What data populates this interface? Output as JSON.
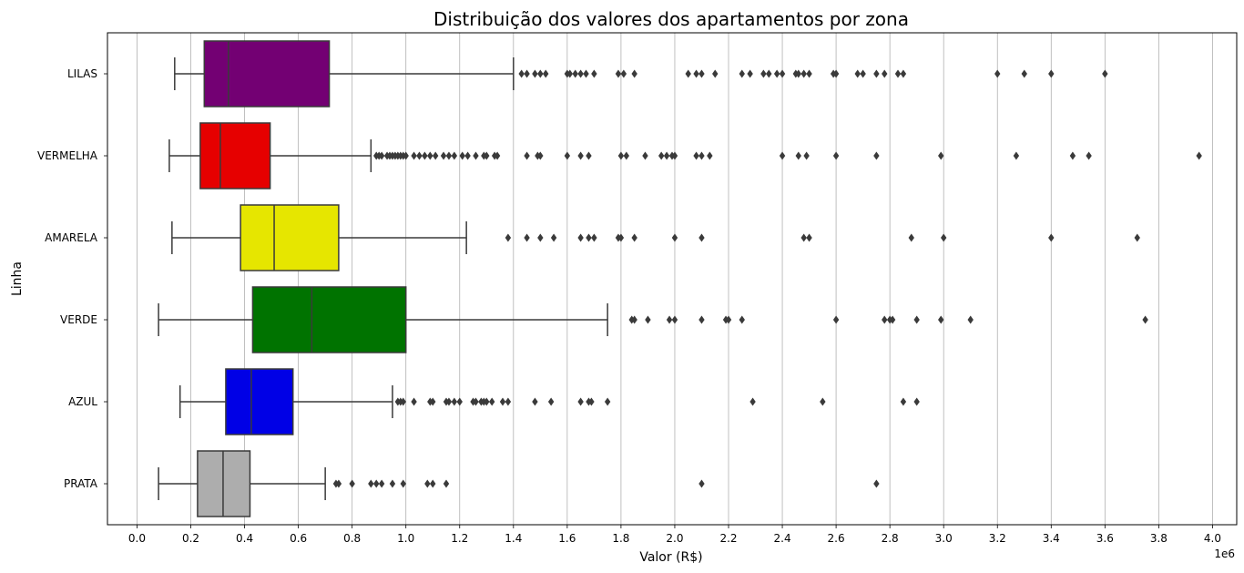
{
  "chart_data": {
    "type": "boxplot",
    "orientation": "horizontal",
    "title": "Distribuição dos valores dos apartamentos por zona",
    "xlabel": "Valor (R$)",
    "ylabel": "Linha",
    "x_offset_label": "1e6",
    "xlim": [
      -0.11,
      4.09
    ],
    "xticks": [
      "0.0",
      "0.2",
      "0.4",
      "0.6",
      "0.8",
      "1.0",
      "1.2",
      "1.4",
      "1.6",
      "1.8",
      "2.0",
      "2.2",
      "2.4",
      "2.6",
      "2.8",
      "3.0",
      "3.2",
      "3.4",
      "3.6",
      "3.8",
      "4.0"
    ],
    "grid": "vertical",
    "categories": [
      "LILAS",
      "VERMELHA",
      "AMARELA",
      "VERDE",
      "AZUL",
      "PRATA"
    ],
    "series": [
      {
        "category": "LILAS",
        "color": "#800080",
        "whisker_low": 0.14,
        "q1": 0.25,
        "median": 0.34,
        "q3": 0.715,
        "whisker_high": 1.4,
        "outliers": [
          1.43,
          1.45,
          1.48,
          1.5,
          1.52,
          1.6,
          1.61,
          1.63,
          1.65,
          1.67,
          1.7,
          1.79,
          1.81,
          1.85,
          2.05,
          2.08,
          2.1,
          2.15,
          2.25,
          2.28,
          2.33,
          2.35,
          2.38,
          2.4,
          2.45,
          2.46,
          2.48,
          2.5,
          2.59,
          2.6,
          2.68,
          2.7,
          2.75,
          2.78,
          2.83,
          2.85,
          3.2,
          3.3,
          3.4,
          3.6
        ]
      },
      {
        "category": "VERMELHA",
        "color": "#ff0000",
        "whisker_low": 0.12,
        "q1": 0.235,
        "median": 0.31,
        "q3": 0.495,
        "whisker_high": 0.87,
        "outliers": [
          0.89,
          0.9,
          0.91,
          0.93,
          0.94,
          0.95,
          0.96,
          0.97,
          0.98,
          0.99,
          1.0,
          1.03,
          1.05,
          1.07,
          1.09,
          1.11,
          1.14,
          1.16,
          1.18,
          1.21,
          1.23,
          1.26,
          1.29,
          1.3,
          1.33,
          1.34,
          1.45,
          1.49,
          1.5,
          1.6,
          1.65,
          1.68,
          1.8,
          1.82,
          1.89,
          1.95,
          1.97,
          1.99,
          2.0,
          2.08,
          2.1,
          2.13,
          2.4,
          2.46,
          2.49,
          2.6,
          2.75,
          2.99,
          3.27,
          3.48,
          3.54,
          3.95
        ]
      },
      {
        "category": "AMARELA",
        "color": "#ffff00",
        "whisker_low": 0.13,
        "q1": 0.385,
        "median": 0.51,
        "q3": 0.75,
        "whisker_high": 1.225,
        "outliers": [
          1.38,
          1.45,
          1.5,
          1.55,
          1.65,
          1.68,
          1.7,
          1.79,
          1.8,
          1.85,
          2.0,
          2.1,
          2.48,
          2.5,
          2.88,
          3.0,
          3.4,
          3.72
        ]
      },
      {
        "category": "VERDE",
        "color": "#008000",
        "whisker_low": 0.08,
        "q1": 0.43,
        "median": 0.65,
        "q3": 1.0,
        "whisker_high": 1.75,
        "outliers": [
          1.84,
          1.85,
          1.9,
          1.98,
          2.0,
          2.1,
          2.19,
          2.2,
          2.25,
          2.6,
          2.78,
          2.8,
          2.81,
          2.9,
          2.99,
          3.1,
          3.75
        ]
      },
      {
        "category": "AZUL",
        "color": "#0000ff",
        "whisker_low": 0.16,
        "q1": 0.33,
        "median": 0.425,
        "q3": 0.58,
        "whisker_high": 0.95,
        "outliers": [
          0.97,
          0.98,
          0.99,
          1.03,
          1.09,
          1.1,
          1.15,
          1.16,
          1.18,
          1.2,
          1.25,
          1.26,
          1.28,
          1.29,
          1.3,
          1.32,
          1.36,
          1.38,
          1.48,
          1.54,
          1.65,
          1.68,
          1.69,
          1.75,
          2.29,
          2.55,
          2.85,
          2.9
        ]
      },
      {
        "category": "PRATA",
        "color": "#c0c0c0",
        "whisker_low": 0.08,
        "q1": 0.225,
        "median": 0.32,
        "q3": 0.42,
        "whisker_high": 0.7,
        "outliers": [
          0.74,
          0.75,
          0.8,
          0.87,
          0.89,
          0.91,
          0.95,
          0.99,
          1.08,
          1.1,
          1.15,
          2.1,
          2.75
        ]
      }
    ]
  }
}
